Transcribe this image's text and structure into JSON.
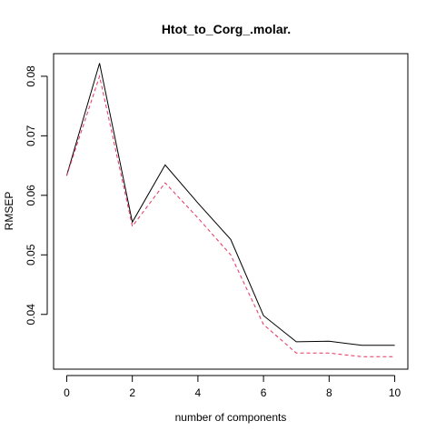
{
  "chart_data": {
    "type": "line",
    "title": "Htot_to_Corg_.molar.",
    "xlabel": "number of components",
    "ylabel": "RMSEP",
    "x": [
      0,
      1,
      2,
      3,
      4,
      5,
      6,
      7,
      8,
      9,
      10
    ],
    "xlim": [
      -0.4,
      10.4
    ],
    "ylim": [
      0.0308,
      0.0838
    ],
    "xticks": [
      0,
      2,
      4,
      6,
      8,
      10
    ],
    "yticks": [
      0.04,
      0.05,
      0.06,
      0.07,
      0.08
    ],
    "xtick_labels": [
      "0",
      "2",
      "4",
      "6",
      "8",
      "10"
    ],
    "ytick_labels": [
      "0.04",
      "0.05",
      "0.06",
      "0.07",
      "0.08"
    ],
    "grid": false,
    "legend": "none",
    "series": [
      {
        "values": [
          0.0633,
          0.0822,
          0.0555,
          0.0651,
          0.0587,
          0.0526,
          0.0398,
          0.0354,
          0.0355,
          0.0348,
          0.0348
        ],
        "color": "#000000",
        "style": "solid"
      },
      {
        "values": [
          0.0633,
          0.08,
          0.0548,
          0.0621,
          0.0562,
          0.05,
          0.0383,
          0.0335,
          0.0335,
          0.0329,
          0.0329
        ],
        "color": "#e8335f",
        "style": "dashed"
      }
    ]
  }
}
